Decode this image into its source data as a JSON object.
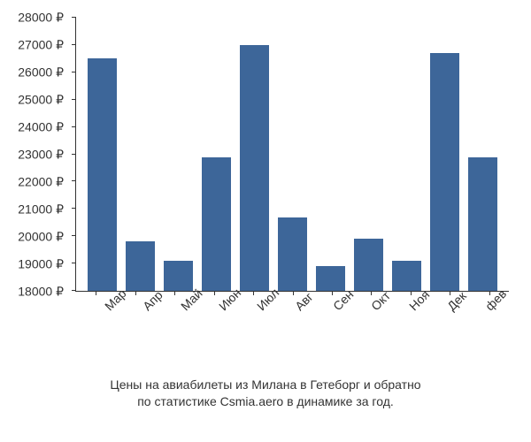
{
  "chart": {
    "type": "bar",
    "categories": [
      "Мар",
      "Апр",
      "Май",
      "Июн",
      "Июл",
      "Авг",
      "Сен",
      "Окт",
      "Ноя",
      "Дек",
      "фев"
    ],
    "values": [
      26500,
      19800,
      19100,
      22900,
      27000,
      20700,
      18900,
      19900,
      19100,
      26700,
      22900
    ],
    "bar_color": "#3d6699",
    "ylim": [
      18000,
      28000
    ],
    "ytick_step": 1000,
    "ytick_suffix": " ₽",
    "background_color": "#ffffff",
    "axis_color": "#333333",
    "label_fontsize": 14,
    "tick_fontsize": 14,
    "bar_width_ratio": 0.78
  },
  "caption": {
    "line1": "Цены на авиабилеты из Милана в Гетеборг и обратно",
    "line2": "по статистике Csmia.aero в динамике за год."
  }
}
